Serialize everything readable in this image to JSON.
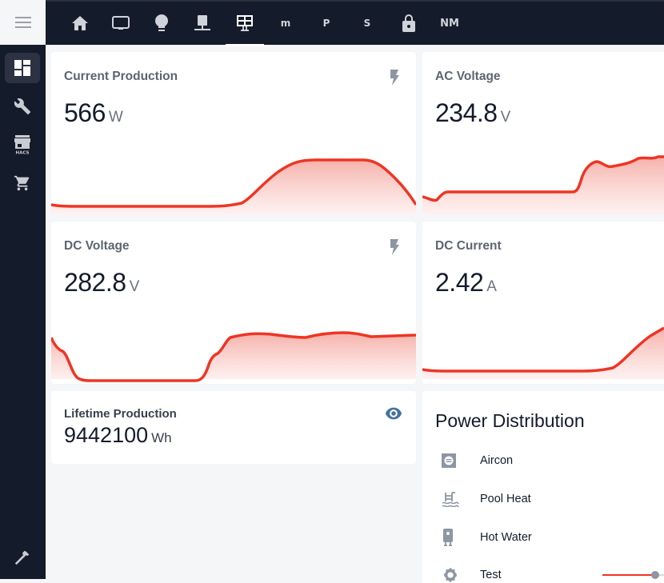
{
  "sidebar": {
    "menu_icon": "menu-icon",
    "items": [
      {
        "name": "dashboard",
        "icon": "dashboard-icon",
        "active": true
      },
      {
        "name": "settings",
        "icon": "wrench-icon",
        "active": false
      },
      {
        "name": "hacs",
        "icon": "store-icon",
        "label": "HACS",
        "active": false
      },
      {
        "name": "shop",
        "icon": "cart-icon",
        "active": false
      }
    ],
    "bottom_item": {
      "name": "developer-tools",
      "icon": "hammer-icon"
    }
  },
  "topbar": {
    "tabs": [
      {
        "name": "home",
        "icon": "home-icon"
      },
      {
        "name": "media",
        "icon": "monitor-icon"
      },
      {
        "name": "lights",
        "icon": "lightbulb-icon"
      },
      {
        "name": "network",
        "icon": "server-network-icon"
      },
      {
        "name": "solar",
        "icon": "solar-panel-icon",
        "active": true
      },
      {
        "name": "m",
        "text": "m"
      },
      {
        "name": "p",
        "text": "P"
      },
      {
        "name": "s",
        "text": "S"
      },
      {
        "name": "security",
        "icon": "lock-icon"
      },
      {
        "name": "nm",
        "text": "NM"
      }
    ]
  },
  "cards": {
    "current_production": {
      "title": "Current Production",
      "value": "566",
      "unit": "W",
      "icon": "flash-icon"
    },
    "ac_voltage": {
      "title": "AC Voltage",
      "value": "234.8",
      "unit": "V"
    },
    "dc_voltage": {
      "title": "DC Voltage",
      "value": "282.8",
      "unit": "V",
      "icon": "flash-icon"
    },
    "dc_current": {
      "title": "DC Current",
      "value": "2.42",
      "unit": "A"
    },
    "lifetime_production": {
      "title": "Lifetime Production",
      "value": "9442100",
      "unit": "Wh",
      "icon": "eye-icon"
    }
  },
  "power_distribution": {
    "title": "Power Distribution",
    "items": [
      {
        "label": "Aircon",
        "icon": "air-conditioner-icon"
      },
      {
        "label": "Pool Heat",
        "icon": "pool-icon"
      },
      {
        "label": "Hot Water",
        "icon": "water-boiler-icon"
      },
      {
        "label": "Test",
        "icon": "gear-icon",
        "slider_value": 0.9
      }
    ]
  },
  "colors": {
    "accent": "#ee3524",
    "sidebar_bg": "#141b2b",
    "icon_gray": "#8d96a2",
    "eye_blue": "#44739e"
  }
}
